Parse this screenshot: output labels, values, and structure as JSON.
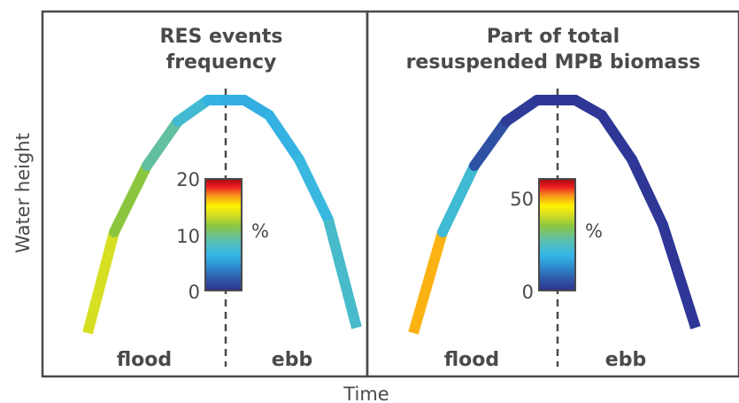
{
  "axes": {
    "ylabel": "Water height",
    "xlabel": "Time"
  },
  "panels": [
    {
      "title_line1": "RES events",
      "title_line2": "frequency",
      "colorbar": {
        "ticks": [
          "20",
          "10",
          "0"
        ],
        "unit": "%",
        "min": 0,
        "max": 20
      },
      "phase_left": "flood",
      "phase_right": "ebb",
      "curve_color_values": [
        13,
        11,
        9,
        7.5,
        6,
        5.5,
        5.5,
        5.5,
        6,
        6.5,
        7.5,
        8.5
      ]
    },
    {
      "title_line1": "Part of total",
      "title_line2": "resuspended MPB biomass",
      "colorbar": {
        "ticks": [
          "50",
          "0"
        ],
        "unit": "%",
        "min": 0,
        "max": 60
      },
      "phase_left": "flood",
      "phase_right": "ebb",
      "curve_color_values": [
        60,
        32,
        8,
        2,
        1,
        1,
        1,
        1,
        1,
        1,
        1,
        1
      ]
    }
  ],
  "colormap": [
    "#2e3192",
    "#2f57a8",
    "#2e8fd0",
    "#34b7e6",
    "#5cbfae",
    "#8cc63f",
    "#d7df23",
    "#fff200",
    "#f7941d",
    "#ed1c24",
    "#9e0b0f"
  ]
}
